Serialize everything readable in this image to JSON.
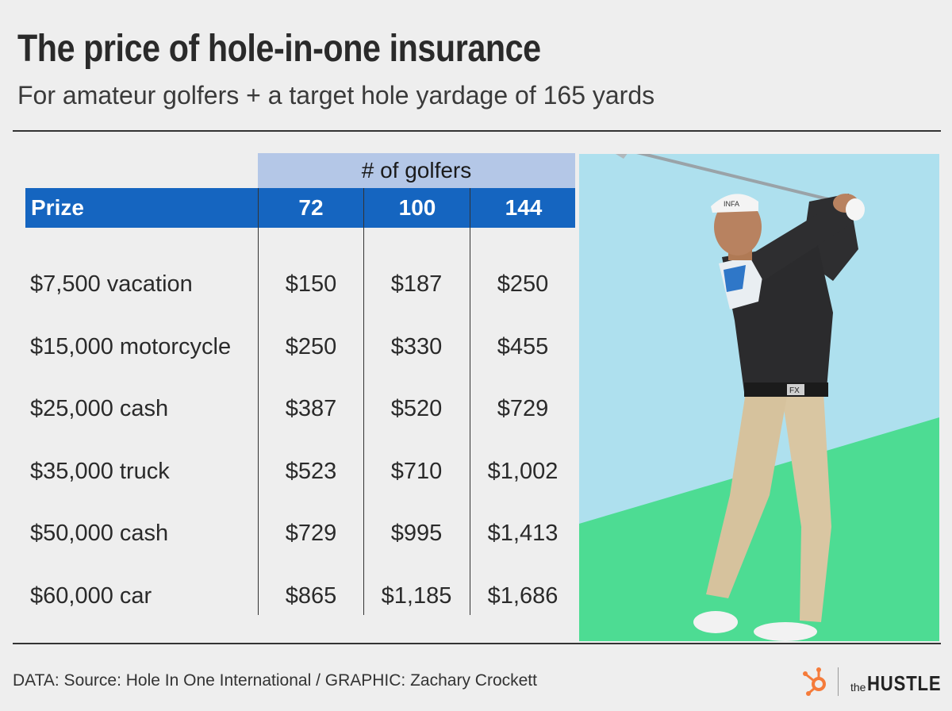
{
  "header": {
    "title": "The price of hole-in-one insurance",
    "subtitle": "For amateur golfers + a target hole yardage of 165 yards"
  },
  "chart_data": {
    "type": "table",
    "title": "The price of hole-in-one insurance",
    "subtitle": "For amateur golfers + a target hole yardage of 165 yards",
    "group_header": "# of golfers",
    "row_header": "Prize",
    "columns": [
      "72",
      "100",
      "144"
    ],
    "rows": [
      {
        "prize": "$7,500 vacation",
        "values": [
          "$150",
          "$187",
          "$250"
        ]
      },
      {
        "prize": "$15,000 motorcycle",
        "values": [
          "$250",
          "$330",
          "$455"
        ]
      },
      {
        "prize": "$25,000 cash",
        "values": [
          "$387",
          "$520",
          "$729"
        ]
      },
      {
        "prize": "$35,000 truck",
        "values": [
          "$523",
          "$710",
          "$1,002"
        ]
      },
      {
        "prize": "$50,000 cash",
        "values": [
          "$729",
          "$995",
          "$1,413"
        ]
      },
      {
        "prize": "$60,000 car",
        "values": [
          "$865",
          "$1,185",
          "$1,686"
        ]
      }
    ]
  },
  "colors": {
    "header_blue": "#1565c0",
    "group_header": "#b4c7e7",
    "sky": "#aee0ee",
    "grass": "#4ddc93",
    "logo_orange": "#f57b3a"
  },
  "footer": {
    "credit": "DATA: Source: Hole In One International / GRAPHIC: Zachary Crockett",
    "logo_small": "the",
    "logo_big": "HUSTLE"
  },
  "photo": {
    "cap_text": "INFA",
    "belt_text": "FX"
  }
}
